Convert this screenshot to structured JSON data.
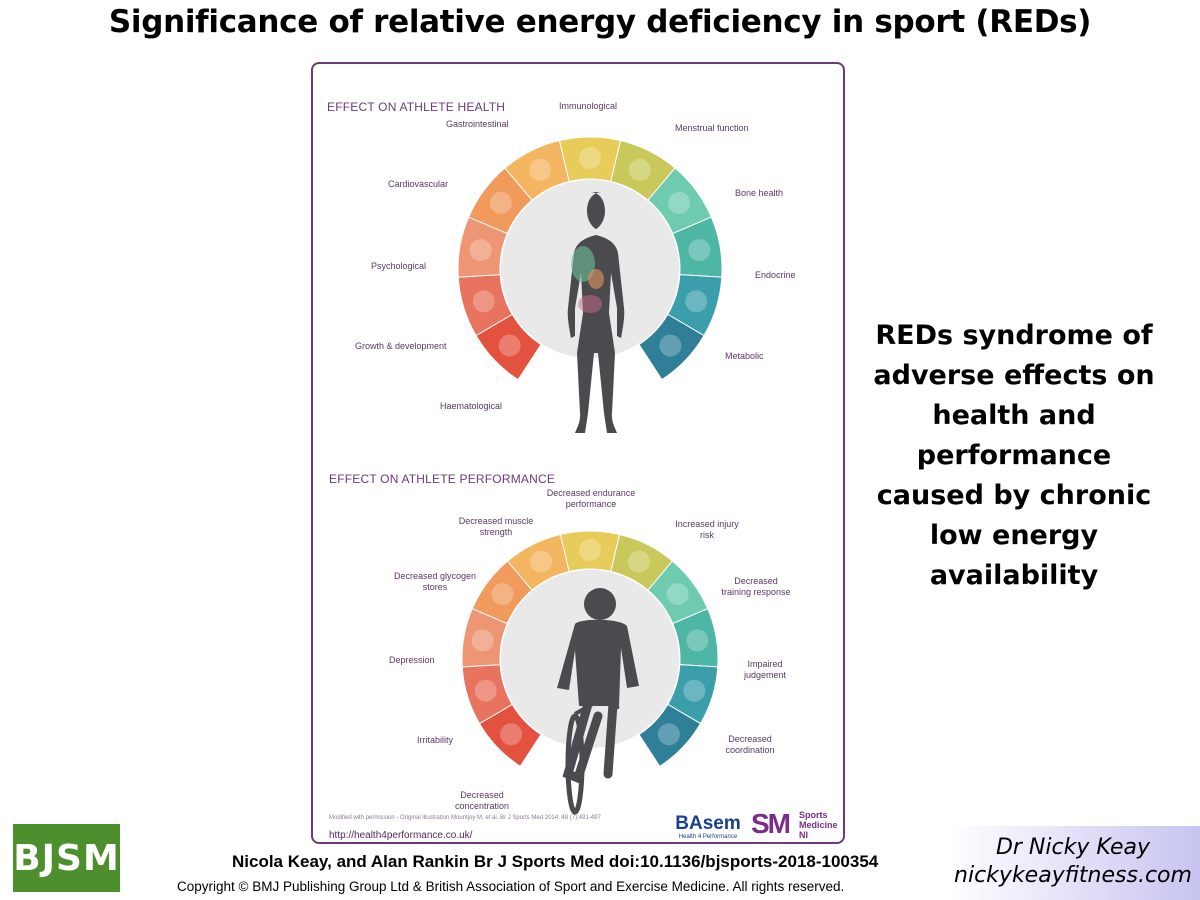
{
  "title": "Significance of relative energy deficiency in sport (REDs)",
  "poster": {
    "health_heading": "EFFECT ON ATHLETE HEALTH",
    "performance_heading": "EFFECT ON ATHLETE PERFORMANCE",
    "health_labels": {
      "immunological": "Immunological",
      "gastrointestinal": "Gastrointestinal",
      "menstrual": "Menstrual function",
      "cardiovascular": "Cardiovascular",
      "bone": "Bone health",
      "psychological": "Psychological",
      "endocrine": "Endocrine",
      "growth": "Growth & development",
      "metabolic": "Metabolic",
      "haematological": "Haematological"
    },
    "performance_labels": {
      "endurance_1": "Decreased endurance",
      "endurance_2": "performance",
      "muscle_1": "Decreased muscle",
      "muscle_2": "strength",
      "injury_1": "Increased injury",
      "injury_2": "risk",
      "glycogen_1": "Decreased glycogen",
      "glycogen_2": "stores",
      "training_1": "Decreased",
      "training_2": "training response",
      "depression": "Depression",
      "judgement_1": "Impaired",
      "judgement_2": "judgement",
      "irritability": "Irritability",
      "coordination_1": "Decreased",
      "coordination_2": "coordination",
      "concentration_1": "Decreased",
      "concentration_2": "concentration"
    },
    "credit": "Modified with permission - Original illustration Mountjoy M, et al. Br J Sports Med 2014; 48 (7):491-497",
    "url": "http://health4performance.co.uk/",
    "basem": {
      "name": "BAsem",
      "tagline": "Health 4 Performance"
    },
    "sm": {
      "letters": "SM",
      "line1": "Sports",
      "line2": "Medicine",
      "line3": "NI"
    }
  },
  "side_text": [
    "REDs syndrome of",
    "adverse effects on",
    "health and",
    "performance",
    "caused by chronic",
    "low energy",
    "availability"
  ],
  "footer": {
    "logo": "BJSM",
    "citation": "Nicola Keay, and Alan Rankin Br J Sports Med doi:10.1136/bjsports-2018-100354",
    "copyright": "Copyright © BMJ Publishing Group Ltd & British Association of Sport and Exercise Medicine. All rights reserved.",
    "author": "Dr Nicky Keay",
    "website": "nickykeayfitness.com"
  },
  "colors": {
    "ring": [
      "#e2523f",
      "#e8735e",
      "#ee9673",
      "#f09a5c",
      "#f4b560",
      "#e8cc5a",
      "#c9c85a",
      "#6fcbb0",
      "#4eb6a4",
      "#3a9eab",
      "#2f7f99"
    ],
    "accent_purple": "#6b3a78",
    "bjsm_green": "#4d8f2c"
  }
}
